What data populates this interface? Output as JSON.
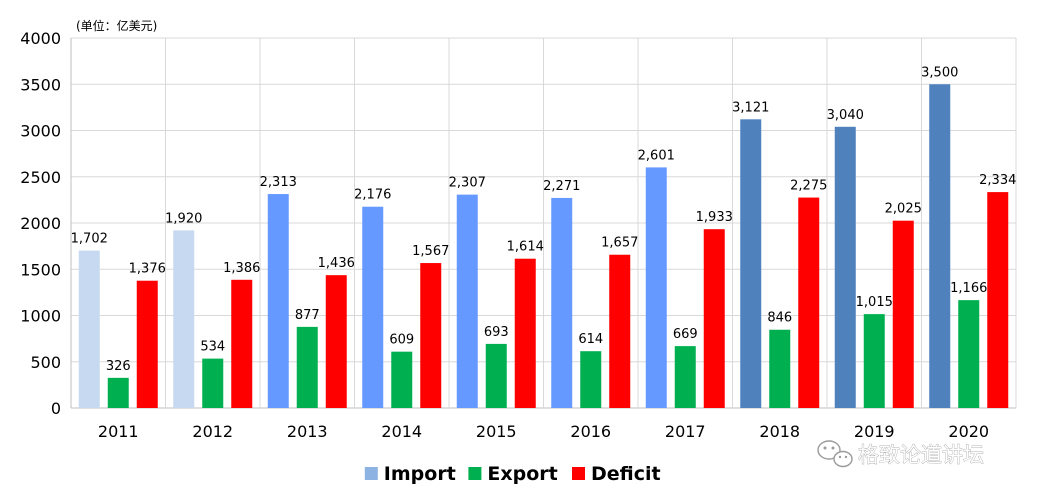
{
  "chart_data": {
    "type": "bar",
    "unit_label": "(单位：亿美元)",
    "categories": [
      "2011",
      "2012",
      "2013",
      "2014",
      "2015",
      "2016",
      "2017",
      "2018",
      "2019",
      "2020"
    ],
    "series": [
      {
        "name": "Import",
        "values": [
          1702,
          1920,
          2313,
          2176,
          2307,
          2271,
          2601,
          3121,
          3040,
          3500
        ],
        "labels": [
          "1,702",
          "1,920",
          "2,313",
          "2,176",
          "2,307",
          "2,271",
          "2,601",
          "3,121",
          "3,040",
          "3,500"
        ],
        "bar_colors": [
          "#c6d9f1",
          "#c6d9f1",
          "#6699ff",
          "#6699ff",
          "#6699ff",
          "#6699ff",
          "#6699ff",
          "#4f81bd",
          "#4f81bd",
          "#4f81bd"
        ],
        "legend_color": "#8db3e2"
      },
      {
        "name": "Export",
        "values": [
          326,
          534,
          877,
          609,
          693,
          614,
          669,
          846,
          1015,
          1166
        ],
        "labels": [
          "326",
          "534",
          "877",
          "609",
          "693",
          "614",
          "669",
          "846",
          "1,015",
          "1,166"
        ],
        "color": "#00b050"
      },
      {
        "name": "Deficit",
        "values": [
          1376,
          1386,
          1436,
          1567,
          1614,
          1657,
          1933,
          2275,
          2025,
          2334
        ],
        "labels": [
          "1,376",
          "1,386",
          "1,436",
          "1,567",
          "1,614",
          "1,657",
          "1,933",
          "2,275",
          "2,025",
          "2,334"
        ],
        "color": "#ff0000"
      }
    ],
    "ylim": [
      0,
      4000
    ],
    "yticks": [
      0,
      500,
      1000,
      1500,
      2000,
      2500,
      3000,
      3500,
      4000
    ],
    "ytick_labels": [
      "0",
      "500",
      "1000",
      "1500",
      "2000",
      "2500",
      "3000",
      "3500",
      "4000"
    ],
    "grid": true,
    "legend_position": "bottom-center",
    "colors": {
      "grid": "#d9d9d9",
      "axis": "#bfbfbf"
    }
  },
  "watermark": {
    "text": "格致论道讲坛",
    "icon": "wechat-icon"
  }
}
